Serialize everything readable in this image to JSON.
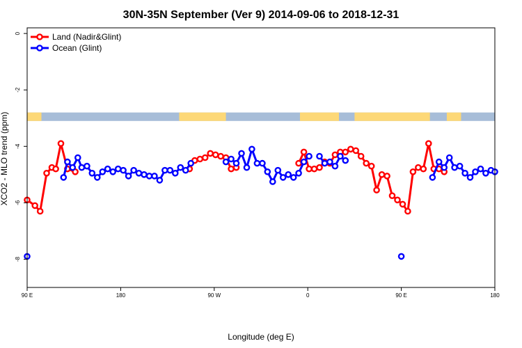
{
  "chart_data": {
    "type": "line",
    "title": "30N-35N September (Ver 9)   2014-09-06 to 2018-12-31",
    "xlabel": "Longitude (deg E)",
    "ylabel": "XCO2 - MLO trend (ppm)",
    "xlim": [
      90,
      450
    ],
    "ylim": [
      -9.0,
      0.2
    ],
    "x_ticks": [
      {
        "value": 90,
        "label": "90 E"
      },
      {
        "value": 162,
        "label": "180"
      },
      {
        "value": 234,
        "label": "90 W"
      },
      {
        "value": 306,
        "label": "0"
      },
      {
        "value": 378,
        "label": "90 E"
      },
      {
        "value": 450,
        "label": "180"
      }
    ],
    "y_ticks": [
      {
        "value": 0,
        "label": "0"
      },
      {
        "value": -2,
        "label": "-2"
      },
      {
        "value": -4,
        "label": "-4"
      },
      {
        "value": -6,
        "label": "-6"
      },
      {
        "value": -8,
        "label": "-8"
      }
    ],
    "legend_position": "top-left",
    "grid": false,
    "land_ocean_strip": {
      "y_range": [
        -3.1,
        -2.8
      ],
      "land_color": "#FDD877",
      "ocean_color": "#A7BDD8",
      "land_segments": [
        [
          90,
          101
        ],
        [
          207,
          243
        ],
        [
          300,
          330
        ],
        [
          342,
          400
        ],
        [
          413,
          424
        ]
      ]
    },
    "series": [
      {
        "name": "Land (Nadir&Glint)",
        "color": "#FF0000",
        "segments": [
          [
            [
              90,
              -5.9
            ],
            [
              96,
              -6.1
            ],
            [
              100,
              -6.3
            ],
            [
              105,
              -4.95
            ],
            [
              109,
              -4.75
            ],
            [
              112,
              -4.8
            ],
            [
              116,
              -3.9
            ],
            [
              121,
              -4.8
            ],
            [
              127,
              -4.9
            ]
          ],
          [
            [
              215,
              -4.8
            ],
            [
              219,
              -4.5
            ],
            [
              223,
              -4.45
            ],
            [
              227,
              -4.4
            ],
            [
              231,
              -4.25
            ],
            [
              235,
              -4.3
            ],
            [
              239,
              -4.35
            ],
            [
              243,
              -4.4
            ],
            [
              247,
              -4.8
            ],
            [
              251,
              -4.75
            ]
          ],
          [
            [
              299,
              -4.6
            ],
            [
              303,
              -4.2
            ],
            [
              307,
              -4.8
            ],
            [
              311,
              -4.8
            ],
            [
              315,
              -4.75
            ],
            [
              319,
              -4.55
            ],
            [
              323,
              -4.6
            ],
            [
              327,
              -4.3
            ],
            [
              331,
              -4.2
            ],
            [
              335,
              -4.2
            ],
            [
              339,
              -4.1
            ],
            [
              343,
              -4.15
            ],
            [
              347,
              -4.35
            ],
            [
              351,
              -4.6
            ],
            [
              355,
              -4.7
            ],
            [
              359,
              -5.55
            ],
            [
              363,
              -5.0
            ],
            [
              367,
              -5.05
            ],
            [
              371,
              -5.75
            ],
            [
              375,
              -5.9
            ],
            [
              379,
              -6.05
            ],
            [
              383,
              -6.3
            ],
            [
              387,
              -4.9
            ],
            [
              391,
              -4.75
            ],
            [
              395,
              -4.8
            ],
            [
              399,
              -3.9
            ],
            [
              403,
              -4.8
            ],
            [
              407,
              -4.8
            ],
            [
              411,
              -4.9
            ]
          ]
        ]
      },
      {
        "name": "Ocean (Glint)",
        "color": "#0000FF",
        "segments": [
          [
            [
              90,
              -7.9
            ]
          ],
          [
            [
              118,
              -5.1
            ],
            [
              121,
              -4.55
            ],
            [
              125,
              -4.75
            ],
            [
              129,
              -4.4
            ],
            [
              132,
              -4.75
            ],
            [
              136,
              -4.7
            ],
            [
              140,
              -4.95
            ],
            [
              144,
              -5.1
            ],
            [
              148,
              -4.9
            ],
            [
              152,
              -4.8
            ],
            [
              156,
              -4.9
            ],
            [
              160,
              -4.8
            ],
            [
              164,
              -4.85
            ],
            [
              168,
              -5.05
            ],
            [
              172,
              -4.85
            ],
            [
              176,
              -4.95
            ],
            [
              180,
              -5.0
            ],
            [
              184,
              -5.05
            ],
            [
              188,
              -5.05
            ],
            [
              192,
              -5.2
            ],
            [
              196,
              -4.85
            ],
            [
              200,
              -4.85
            ],
            [
              204,
              -4.95
            ],
            [
              208,
              -4.75
            ],
            [
              212,
              -4.85
            ],
            [
              216,
              -4.6
            ]
          ],
          [
            [
              243,
              -4.55
            ],
            [
              247,
              -4.45
            ],
            [
              251,
              -4.6
            ],
            [
              255,
              -4.25
            ],
            [
              259,
              -4.75
            ],
            [
              263,
              -4.1
            ],
            [
              267,
              -4.6
            ],
            [
              271,
              -4.6
            ],
            [
              275,
              -4.9
            ],
            [
              279,
              -5.25
            ],
            [
              283,
              -4.85
            ],
            [
              287,
              -5.1
            ],
            [
              291,
              -5.0
            ],
            [
              295,
              -5.1
            ],
            [
              299,
              -4.95
            ],
            [
              303,
              -4.55
            ],
            [
              307,
              -4.35
            ]
          ],
          [
            [
              315,
              -4.35
            ],
            [
              319,
              -4.6
            ],
            [
              323,
              -4.55
            ],
            [
              327,
              -4.7
            ],
            [
              331,
              -4.35
            ],
            [
              335,
              -4.5
            ]
          ],
          [
            [
              378,
              -7.9
            ]
          ],
          [
            [
              402,
              -5.1
            ],
            [
              407,
              -4.55
            ],
            [
              411,
              -4.75
            ],
            [
              415,
              -4.4
            ],
            [
              419,
              -4.75
            ],
            [
              423,
              -4.7
            ],
            [
              427,
              -4.95
            ],
            [
              431,
              -5.1
            ],
            [
              435,
              -4.9
            ],
            [
              439,
              -4.8
            ],
            [
              443,
              -4.95
            ],
            [
              447,
              -4.85
            ],
            [
              450,
              -4.9
            ]
          ]
        ]
      }
    ]
  }
}
